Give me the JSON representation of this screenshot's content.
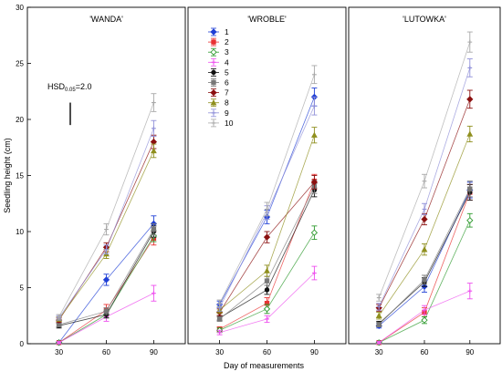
{
  "chart_data": {
    "type": "line",
    "ylabel": "Seedling height (cm)",
    "xlabel": "Day of measurements",
    "x": [
      30,
      60,
      90
    ],
    "xticks": [
      "30",
      "60",
      "90"
    ],
    "ylim": [
      0,
      30
    ],
    "yticks": [
      "0",
      "5",
      "10",
      "15",
      "20",
      "25",
      "30"
    ],
    "hsd": {
      "prefix": "HSD",
      "subscript": "0.05",
      "suffix": "=2.0",
      "value": 2.0
    },
    "legend_position": "top-left of middle panel",
    "series_styles": [
      {
        "name": "1",
        "color": "#1f3fd6",
        "marker": "diamond"
      },
      {
        "name": "2",
        "color": "#e83232",
        "marker": "square"
      },
      {
        "name": "3",
        "color": "#2e9a2e",
        "marker": "diamond-open"
      },
      {
        "name": "4",
        "color": "#ee4fee",
        "marker": "plus"
      },
      {
        "name": "5",
        "color": "#111111",
        "marker": "circle"
      },
      {
        "name": "6",
        "color": "#777777",
        "marker": "square"
      },
      {
        "name": "7",
        "color": "#8b1010",
        "marker": "diamond"
      },
      {
        "name": "8",
        "color": "#8f8f1e",
        "marker": "triangle"
      },
      {
        "name": "9",
        "color": "#8f8fd8",
        "marker": "plus"
      },
      {
        "name": "10",
        "color": "#a8a8a8",
        "marker": "plus"
      }
    ],
    "panels": [
      {
        "title": "'WANDA'",
        "series": [
          {
            "name": "1",
            "values": [
              0.1,
              5.7,
              10.7
            ],
            "errors": [
              0.1,
              0.5,
              0.7
            ]
          },
          {
            "name": "2",
            "values": [
              0.1,
              3.0,
              9.4
            ],
            "errors": [
              0.1,
              0.5,
              0.6
            ]
          },
          {
            "name": "3",
            "values": [
              0.1,
              2.6,
              9.6
            ],
            "errors": [
              0.1,
              0.3,
              0.5
            ]
          },
          {
            "name": "4",
            "values": [
              0.1,
              2.4,
              4.5
            ],
            "errors": [
              0.1,
              0.4,
              0.7
            ]
          },
          {
            "name": "5",
            "values": [
              1.6,
              2.6,
              10.0
            ],
            "errors": [
              0.2,
              0.3,
              0.5
            ]
          },
          {
            "name": "6",
            "values": [
              1.7,
              2.9,
              10.2
            ],
            "errors": [
              0.2,
              0.3,
              0.5
            ]
          },
          {
            "name": "7",
            "values": [
              2.1,
              8.6,
              18.0
            ],
            "errors": [
              0.2,
              0.4,
              0.6
            ]
          },
          {
            "name": "8",
            "values": [
              2.2,
              8.0,
              17.2
            ],
            "errors": [
              0.2,
              0.4,
              0.6
            ]
          },
          {
            "name": "9",
            "values": [
              2.3,
              8.4,
              19.2
            ],
            "errors": [
              0.2,
              0.4,
              0.7
            ]
          },
          {
            "name": "10",
            "values": [
              2.4,
              10.2,
              21.5
            ],
            "errors": [
              0.2,
              0.5,
              0.8
            ]
          }
        ]
      },
      {
        "title": "'WROBLE'",
        "series": [
          {
            "name": "1",
            "values": [
              3.5,
              11.3,
              22.0
            ],
            "errors": [
              0.3,
              0.6,
              0.8
            ]
          },
          {
            "name": "2",
            "values": [
              1.3,
              3.6,
              14.5
            ],
            "errors": [
              0.2,
              0.5,
              0.6
            ]
          },
          {
            "name": "3",
            "values": [
              1.2,
              3.1,
              9.9
            ],
            "errors": [
              0.2,
              0.4,
              0.6
            ]
          },
          {
            "name": "4",
            "values": [
              1.0,
              2.2,
              6.3
            ],
            "errors": [
              0.2,
              0.3,
              0.6
            ]
          },
          {
            "name": "5",
            "values": [
              2.3,
              4.8,
              13.7
            ],
            "errors": [
              0.2,
              0.4,
              0.6
            ]
          },
          {
            "name": "6",
            "values": [
              2.2,
              5.6,
              14.0
            ],
            "errors": [
              0.2,
              0.4,
              0.6
            ]
          },
          {
            "name": "7",
            "values": [
              2.8,
              9.5,
              14.4
            ],
            "errors": [
              0.3,
              0.5,
              0.6
            ]
          },
          {
            "name": "8",
            "values": [
              3.0,
              6.5,
              18.6
            ],
            "errors": [
              0.3,
              0.5,
              0.7
            ]
          },
          {
            "name": "9",
            "values": [
              3.2,
              11.7,
              21.2
            ],
            "errors": [
              0.3,
              0.6,
              0.8
            ]
          },
          {
            "name": "10",
            "values": [
              3.6,
              12.0,
              24.0
            ],
            "errors": [
              0.3,
              0.6,
              0.8
            ]
          }
        ]
      },
      {
        "title": "'LUTOWKA'",
        "series": [
          {
            "name": "1",
            "values": [
              1.6,
              5.1,
              13.7
            ],
            "errors": [
              0.2,
              0.5,
              0.7
            ]
          },
          {
            "name": "2",
            "values": [
              0.1,
              2.8,
              13.5
            ],
            "errors": [
              0.1,
              0.4,
              0.7
            ]
          },
          {
            "name": "3",
            "values": [
              0.1,
              2.1,
              11.0
            ],
            "errors": [
              0.1,
              0.3,
              0.6
            ]
          },
          {
            "name": "4",
            "values": [
              0.1,
              3.0,
              4.7
            ],
            "errors": [
              0.1,
              0.4,
              0.7
            ]
          },
          {
            "name": "5",
            "values": [
              1.8,
              5.5,
              13.5
            ],
            "errors": [
              0.2,
              0.4,
              0.7
            ]
          },
          {
            "name": "6",
            "values": [
              1.7,
              5.7,
              13.8
            ],
            "errors": [
              0.2,
              0.4,
              0.7
            ]
          },
          {
            "name": "7",
            "values": [
              3.2,
              11.1,
              21.8
            ],
            "errors": [
              0.3,
              0.5,
              0.8
            ]
          },
          {
            "name": "8",
            "values": [
              2.5,
              8.4,
              18.7
            ],
            "errors": [
              0.3,
              0.5,
              0.7
            ]
          },
          {
            "name": "9",
            "values": [
              3.3,
              12.0,
              24.6
            ],
            "errors": [
              0.3,
              0.5,
              0.8
            ]
          },
          {
            "name": "10",
            "values": [
              4.1,
              14.5,
              26.9
            ],
            "errors": [
              0.3,
              0.6,
              0.9
            ]
          }
        ]
      }
    ]
  }
}
